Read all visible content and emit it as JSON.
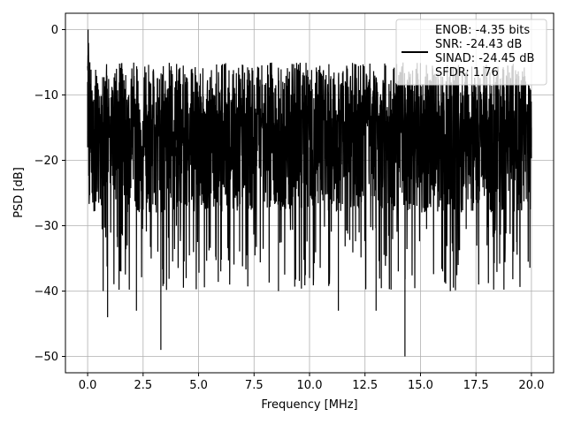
{
  "chart_data": {
    "type": "line",
    "xlabel": "Frequency [MHz]",
    "ylabel": "PSD [dB]",
    "xlim": [
      -1.0,
      21.0
    ],
    "ylim": [
      -52.5,
      2.5
    ],
    "x_ticks": [
      0.0,
      2.5,
      5.0,
      7.5,
      10.0,
      12.5,
      15.0,
      17.5,
      20.0
    ],
    "x_tick_labels": [
      "0.0",
      "2.5",
      "5.0",
      "7.5",
      "10.0",
      "12.5",
      "15.0",
      "17.5",
      "20.0"
    ],
    "y_ticks": [
      0,
      -10,
      -20,
      -30,
      -40,
      -50
    ],
    "y_tick_labels": [
      "0",
      "−10",
      "−20",
      "−30",
      "−40",
      "−50"
    ],
    "grid": true,
    "legend_position": "top-right",
    "series": [
      {
        "color": "#000000",
        "description": "noise-like power spectral density, values mostly between -30 and -5 dB",
        "x_range": [
          0.0,
          20.0
        ],
        "points": [
          [
            0.0,
            -8
          ],
          [
            0.02,
            0
          ],
          [
            0.05,
            -12
          ],
          [
            0.1,
            -5
          ],
          [
            0.2,
            -25
          ],
          [
            0.3,
            -18
          ],
          [
            0.5,
            -12
          ],
          [
            0.7,
            -40
          ],
          [
            0.9,
            -44
          ],
          [
            1.2,
            -15
          ],
          [
            1.5,
            -37
          ],
          [
            2.0,
            -12
          ],
          [
            2.2,
            -43
          ],
          [
            2.5,
            -14
          ],
          [
            3.0,
            -25
          ],
          [
            3.3,
            -49
          ],
          [
            3.5,
            -12
          ],
          [
            4.0,
            -30
          ],
          [
            4.5,
            -8
          ],
          [
            5.0,
            -20
          ],
          [
            6.0,
            -37
          ],
          [
            7.0,
            -10
          ],
          [
            7.5,
            -25
          ],
          [
            8.6,
            -40
          ],
          [
            9.5,
            -9
          ],
          [
            10.0,
            -38
          ],
          [
            10.5,
            -12
          ],
          [
            11.3,
            -43
          ],
          [
            12.0,
            -10
          ],
          [
            12.5,
            -28
          ],
          [
            13.0,
            -43
          ],
          [
            13.5,
            -15
          ],
          [
            14.0,
            -37
          ],
          [
            14.3,
            -50
          ],
          [
            15.0,
            -10
          ],
          [
            16.0,
            -37
          ],
          [
            17.0,
            -8
          ],
          [
            18.0,
            -33
          ],
          [
            19.0,
            -11
          ],
          [
            20.0,
            -15
          ]
        ]
      }
    ],
    "legend": [
      "ENOB: -4.35 bits",
      "SNR: -24.43 dB",
      "SINAD: -24.45 dB",
      "SFDR: 1.76"
    ]
  }
}
